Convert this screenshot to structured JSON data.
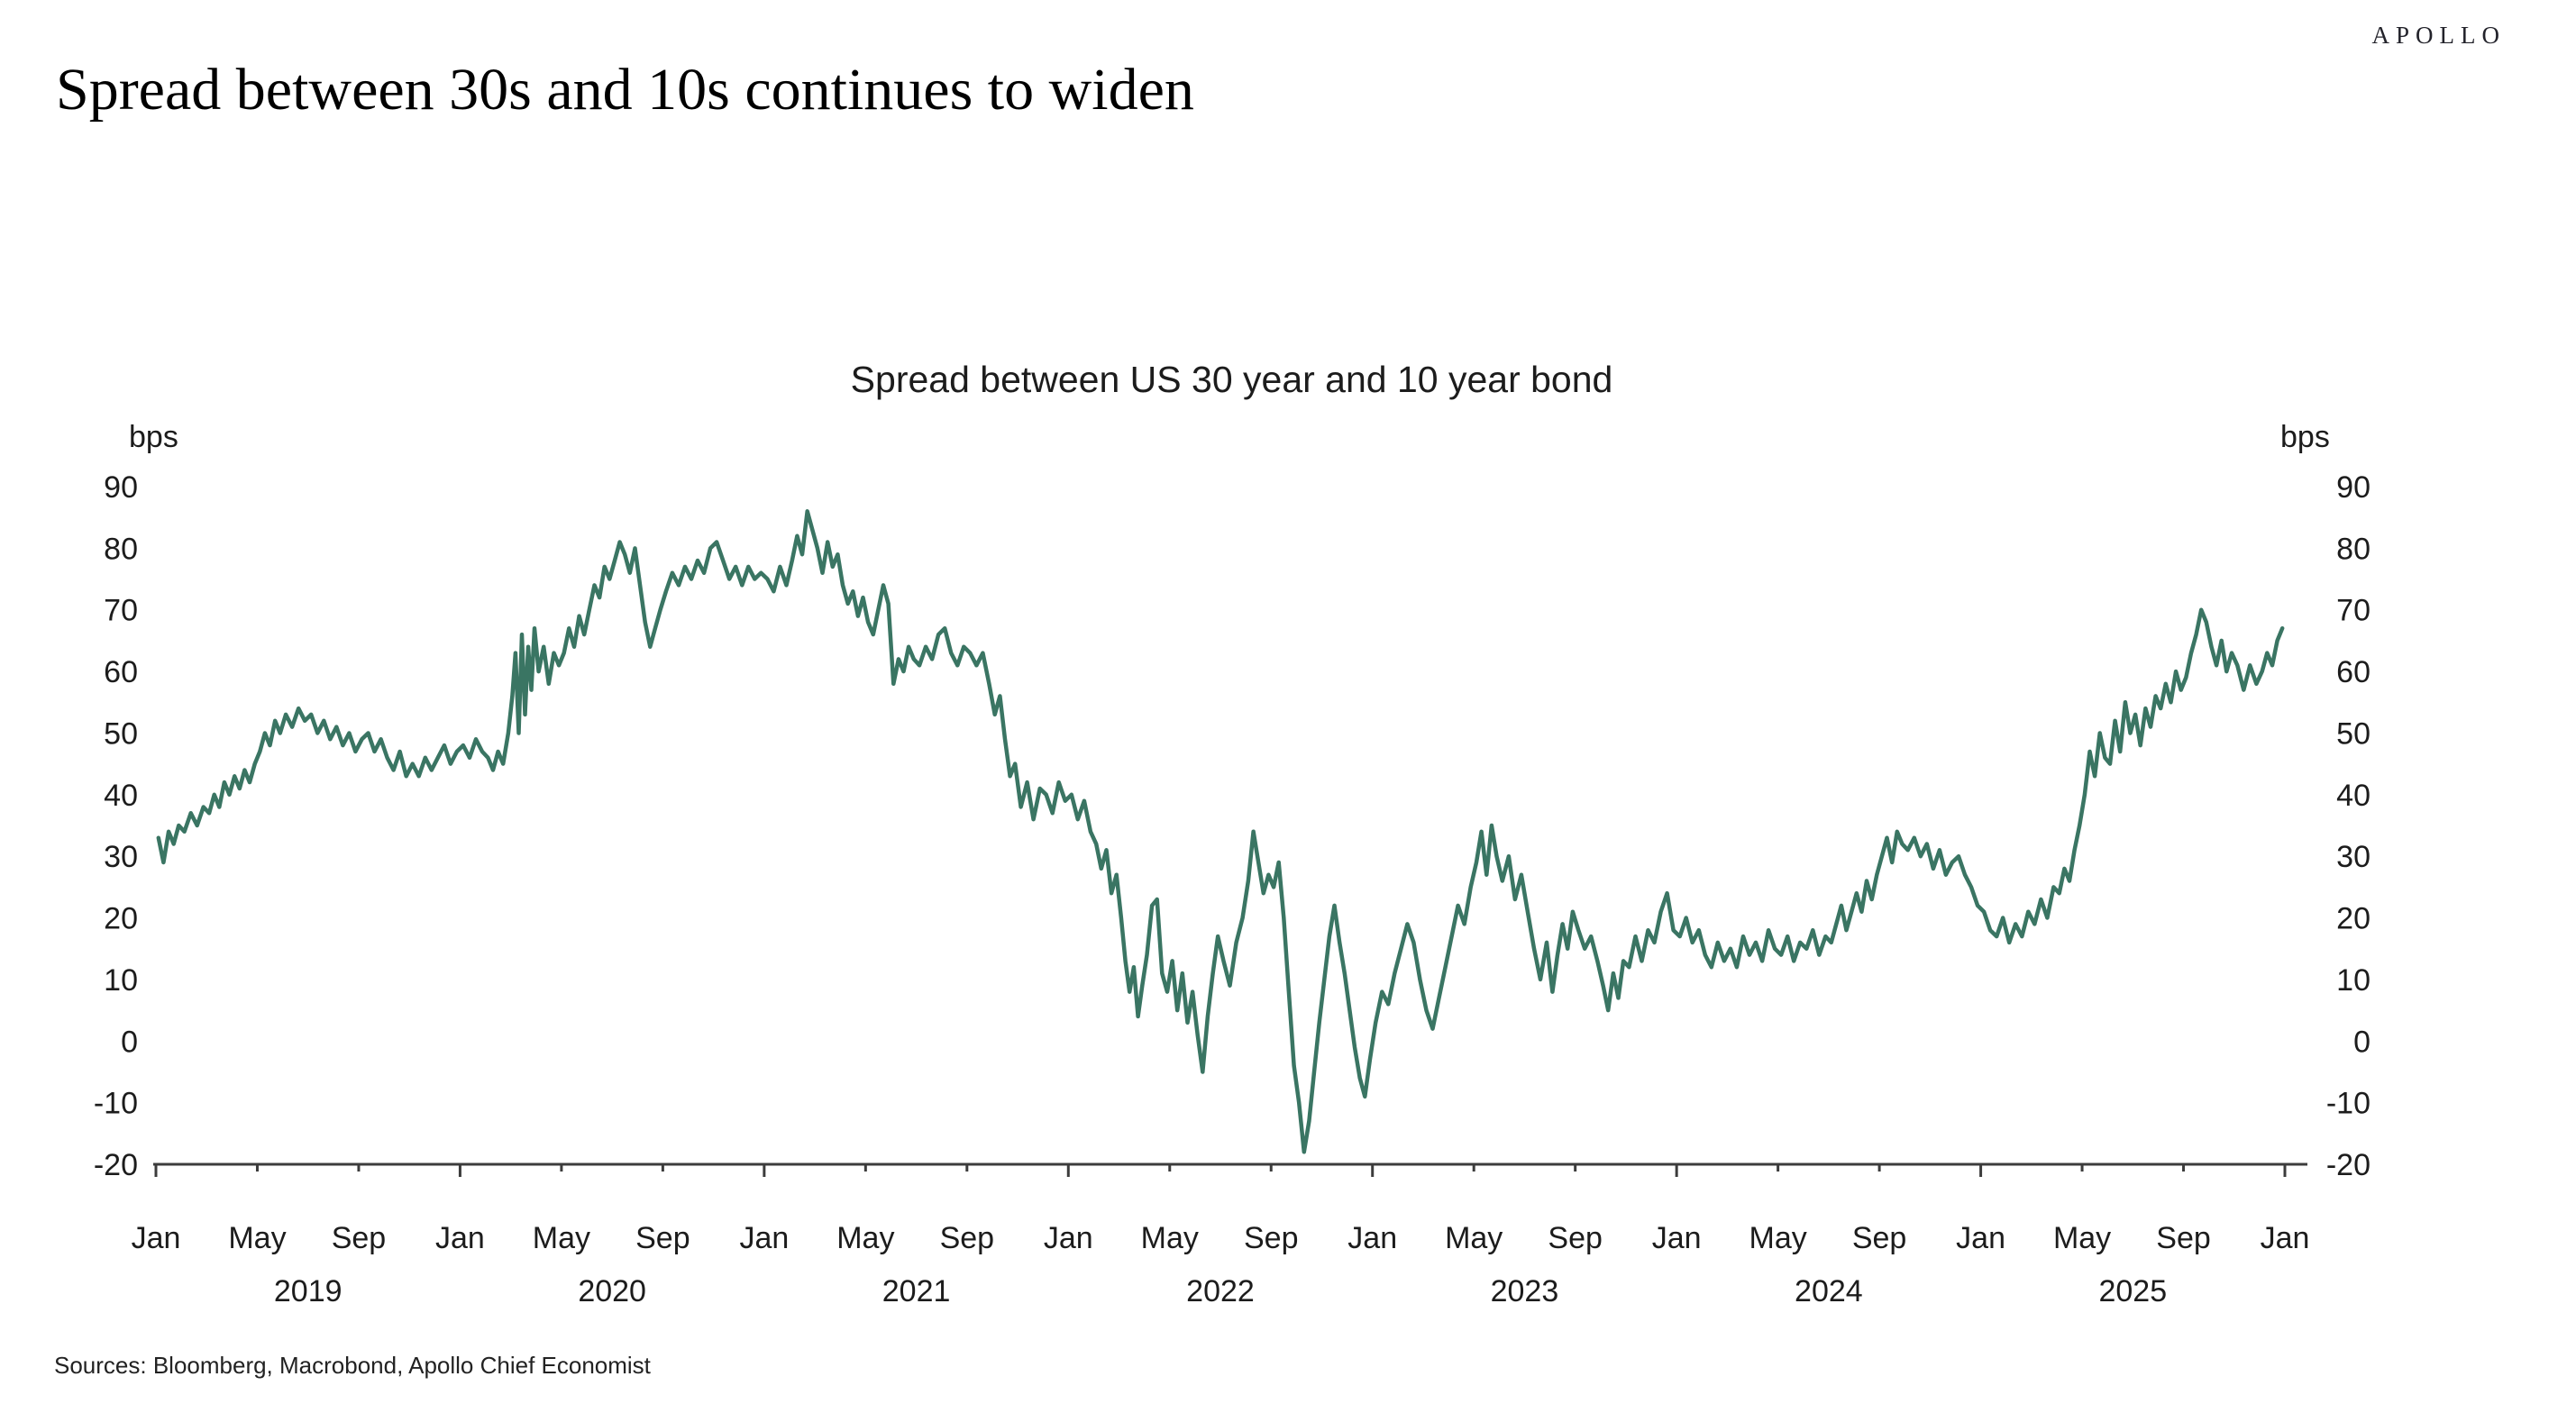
{
  "brand": "APOLLO",
  "page_title": "Spread between 30s and 10s continues to widen",
  "sources": "Sources: Bloomberg, Macrobond, Apollo Chief Economist",
  "chart_data": {
    "type": "line",
    "title": "Spread between US 30 year and 10 year bond",
    "ylabel_left": "bps",
    "ylabel_right": "bps",
    "line_color": "#3A7563",
    "axis_color": "#3c3c3c",
    "grid": "off",
    "legend": "none",
    "ylim": [
      -20,
      90
    ],
    "y_ticks": [
      90,
      80,
      70,
      60,
      50,
      40,
      30,
      20,
      10,
      0,
      -10,
      -20
    ],
    "x_start": "2019-01",
    "x_end": "2026-01",
    "x_month_tick_labels": [
      "Jan",
      "May",
      "Sep"
    ],
    "x_end_tick_label": "Jan",
    "x_year_labels": [
      "2019",
      "2020",
      "2021",
      "2022",
      "2023",
      "2024",
      "2025"
    ],
    "series": [
      {
        "name": "Spread between US 30 year and 10 year bond",
        "unit": "bps",
        "start_month": "2019-01",
        "monthly_values": [
          [
            33,
            29,
            34,
            32,
            35
          ],
          [
            34,
            37,
            35,
            38
          ],
          [
            37,
            40,
            38,
            42,
            40
          ],
          [
            43,
            41,
            44,
            42,
            45
          ],
          [
            47,
            50,
            48,
            52,
            50
          ],
          [
            53,
            51,
            54,
            52
          ],
          [
            53,
            50,
            52,
            49
          ],
          [
            51,
            48,
            50,
            47
          ],
          [
            49,
            50,
            47,
            49
          ],
          [
            46,
            44,
            47,
            43
          ],
          [
            45,
            43,
            46,
            44
          ],
          [
            46,
            48,
            45,
            47
          ],
          [
            48,
            46,
            49,
            47
          ],
          [
            46,
            44,
            47,
            45,
            50
          ],
          [
            56,
            63,
            50,
            66,
            53,
            64,
            57,
            67
          ],
          [
            60,
            64,
            58,
            63,
            61
          ],
          [
            63,
            67,
            64,
            69,
            66
          ],
          [
            70,
            74,
            72,
            77,
            75
          ],
          [
            78,
            81,
            79,
            76,
            80
          ],
          [
            74,
            68,
            64,
            67,
            70
          ],
          [
            73,
            76,
            74,
            77
          ],
          [
            75,
            78,
            76,
            80
          ],
          [
            81,
            78,
            75,
            77
          ],
          [
            74,
            77,
            75,
            76
          ],
          [
            75,
            73,
            77,
            74
          ],
          [
            78,
            82,
            79,
            86,
            83
          ],
          [
            80,
            76,
            81,
            77,
            79
          ],
          [
            74,
            71,
            73,
            69,
            72
          ],
          [
            68,
            66,
            70,
            74,
            71
          ],
          [
            58,
            62,
            60,
            64,
            62
          ],
          [
            61,
            64,
            62,
            66
          ],
          [
            67,
            63,
            61,
            64
          ],
          [
            63,
            61,
            63,
            58
          ],
          [
            53,
            56,
            49,
            43,
            45
          ],
          [
            38,
            42,
            36,
            41
          ],
          [
            40,
            37,
            42,
            39
          ],
          [
            40,
            36,
            39,
            34
          ],
          [
            32,
            28,
            31,
            24,
            27
          ],
          [
            20,
            13,
            8,
            12,
            4,
            9
          ],
          [
            14,
            22,
            23,
            11,
            8
          ],
          [
            13,
            5,
            11,
            3,
            8
          ],
          [
            1,
            -5,
            4,
            11,
            17
          ],
          [
            13,
            9,
            16,
            20
          ],
          [
            26,
            34,
            29,
            24,
            27
          ],
          [
            25,
            29,
            20,
            8,
            -4
          ],
          [
            -10,
            -18,
            -13,
            -5,
            3
          ],
          [
            10,
            17,
            22,
            16,
            11
          ],
          [
            5,
            -1,
            -6,
            -9,
            -3
          ],
          [
            3,
            8,
            6,
            11
          ],
          [
            15,
            19,
            16,
            10
          ],
          [
            5,
            2,
            7,
            12
          ],
          [
            17,
            22,
            19,
            25
          ],
          [
            29,
            34,
            27,
            35,
            30
          ],
          [
            26,
            30,
            23,
            27
          ],
          [
            21,
            15,
            10,
            16
          ],
          [
            8,
            14,
            19,
            15,
            21
          ],
          [
            18,
            15,
            17,
            13
          ],
          [
            9,
            5,
            11,
            7,
            13
          ],
          [
            12,
            17,
            13,
            18
          ],
          [
            16,
            21,
            24,
            18
          ],
          [
            17,
            20,
            16,
            18
          ],
          [
            14,
            12,
            16,
            13
          ],
          [
            15,
            12,
            17,
            14
          ],
          [
            16,
            13,
            18,
            15
          ],
          [
            14,
            17,
            13,
            16
          ],
          [
            15,
            18,
            14,
            17
          ],
          [
            16,
            19,
            22,
            18,
            21
          ],
          [
            24,
            21,
            26,
            23,
            27
          ],
          [
            30,
            33,
            29,
            34,
            32
          ],
          [
            31,
            33,
            30,
            32
          ],
          [
            28,
            31,
            27,
            29
          ],
          [
            30,
            27,
            25,
            22
          ],
          [
            21,
            18,
            17,
            20
          ],
          [
            16,
            19,
            17,
            21
          ],
          [
            19,
            23,
            20,
            25
          ],
          [
            24,
            28,
            26,
            31,
            35
          ],
          [
            40,
            47,
            43,
            50,
            46
          ],
          [
            45,
            52,
            47,
            55,
            50
          ],
          [
            53,
            48,
            54,
            51,
            56
          ],
          [
            54,
            58,
            55,
            60,
            57
          ],
          [
            59,
            63,
            66,
            70,
            68
          ],
          [
            64,
            61,
            65,
            60,
            63
          ],
          [
            61,
            57,
            61,
            58
          ],
          [
            60,
            63,
            61,
            65,
            67
          ]
        ]
      }
    ]
  }
}
